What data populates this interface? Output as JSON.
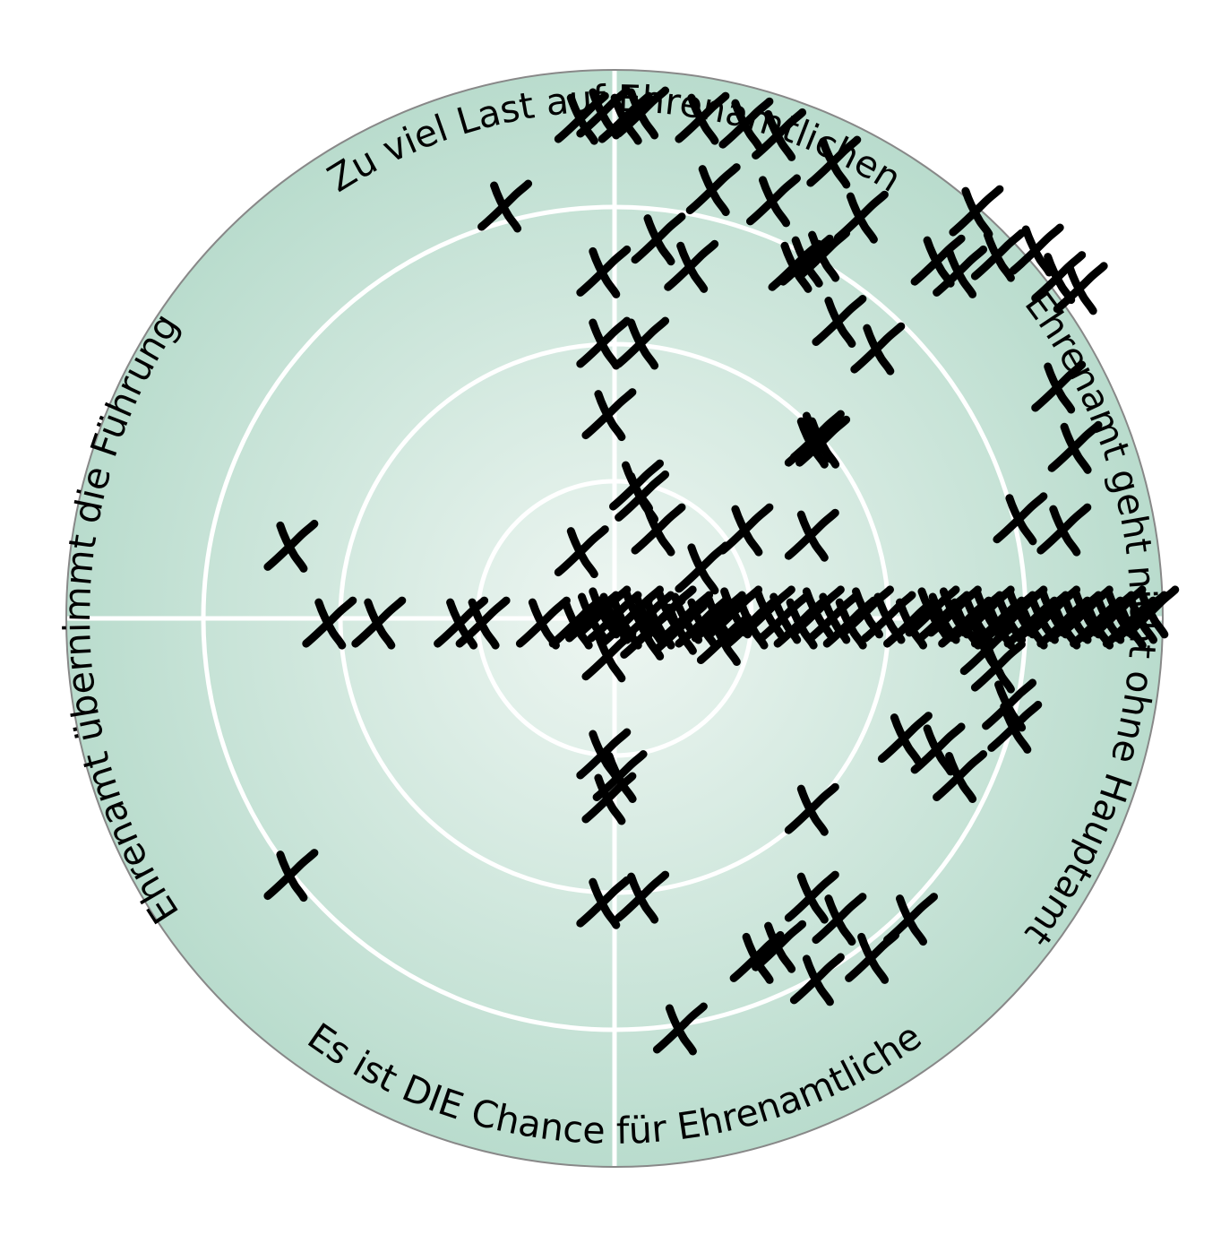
{
  "chart_data": {
    "type": "scatter",
    "shape": "polar-quadrant",
    "marker": "handwritten-x",
    "rings": 4,
    "grid": true,
    "axis_labels": {
      "top": "Zu viel Last auf Ehrenamtlichen",
      "right": "Ehrenamt geht nicht ohne Hauptamt",
      "bottom": "Es ist DIE Chance für Ehrenamtliche",
      "left": "Ehrenamt übernimmt die Führung"
    },
    "colors": {
      "center": "#eef6f2",
      "edge": "#b9dccd",
      "grid": "#ffffff",
      "outline": "#888888",
      "marker": "#000000"
    },
    "points": [
      [
        -0.06,
        0.91
      ],
      [
        -0.02,
        0.92
      ],
      [
        0.02,
        0.91
      ],
      [
        0.05,
        0.92
      ],
      [
        0.16,
        0.91
      ],
      [
        0.24,
        0.9
      ],
      [
        0.3,
        0.88
      ],
      [
        0.4,
        0.83
      ],
      [
        -0.2,
        0.75
      ],
      [
        0.18,
        0.78
      ],
      [
        0.29,
        0.76
      ],
      [
        0.45,
        0.73
      ],
      [
        0.08,
        0.69
      ],
      [
        0.14,
        0.64
      ],
      [
        -0.02,
        0.63
      ],
      [
        0.33,
        0.64
      ],
      [
        0.35,
        0.65
      ],
      [
        0.38,
        0.66
      ],
      [
        0.66,
        0.74
      ],
      [
        0.59,
        0.65
      ],
      [
        0.63,
        0.63
      ],
      [
        0.7,
        0.66
      ],
      [
        0.77,
        0.67
      ],
      [
        0.81,
        0.62
      ],
      [
        0.85,
        0.6
      ],
      [
        -0.02,
        0.5
      ],
      [
        0.05,
        0.5
      ],
      [
        0.41,
        0.54
      ],
      [
        0.48,
        0.49
      ],
      [
        0.81,
        0.42
      ],
      [
        -0.01,
        0.37
      ],
      [
        0.36,
        0.32
      ],
      [
        0.37,
        0.33
      ],
      [
        0.38,
        0.32
      ],
      [
        0.84,
        0.31
      ],
      [
        0.04,
        0.24
      ],
      [
        0.05,
        0.22
      ],
      [
        0.08,
        0.16
      ],
      [
        -0.06,
        0.12
      ],
      [
        0.24,
        0.16
      ],
      [
        0.36,
        0.15
      ],
      [
        0.82,
        0.16
      ],
      [
        0.74,
        0.18
      ],
      [
        0.16,
        0.09
      ],
      [
        -0.59,
        0.13
      ],
      [
        -0.52,
        -0.01
      ],
      [
        -0.43,
        -0.01
      ],
      [
        -0.28,
        -0.01
      ],
      [
        -0.24,
        -0.01
      ],
      [
        -0.13,
        -0.01
      ],
      [
        -0.07,
        -0.01
      ],
      [
        -0.04,
        0
      ],
      [
        -0.02,
        0.01
      ],
      [
        0,
        0
      ],
      [
        0.02,
        -0.01
      ],
      [
        0.04,
        0.01
      ],
      [
        0.06,
        0
      ],
      [
        0.08,
        -0.01
      ],
      [
        0.1,
        0.01
      ],
      [
        0.13,
        0
      ],
      [
        0.16,
        -0.01
      ],
      [
        0.19,
        0
      ],
      [
        0.22,
        0.01
      ],
      [
        0.25,
        -0.01
      ],
      [
        0.28,
        0.01
      ],
      [
        0.31,
        0
      ],
      [
        0.34,
        -0.01
      ],
      [
        0.37,
        0.01
      ],
      [
        0.4,
        0
      ],
      [
        0.43,
        -0.01
      ],
      [
        0.46,
        0.01
      ],
      [
        0.5,
        0
      ],
      [
        0.54,
        -0.01
      ],
      [
        0.58,
        0.01
      ],
      [
        0.6,
        0
      ],
      [
        0.62,
        0.01
      ],
      [
        0.64,
        -0.01
      ],
      [
        0.66,
        0
      ],
      [
        0.68,
        0.01
      ],
      [
        0.7,
        -0.01
      ],
      [
        0.72,
        0
      ],
      [
        0.74,
        0.01
      ],
      [
        0.76,
        -0.01
      ],
      [
        0.78,
        0
      ],
      [
        0.8,
        0.01
      ],
      [
        0.82,
        -0.01
      ],
      [
        0.84,
        0
      ],
      [
        0.86,
        0.01
      ],
      [
        0.88,
        -0.01
      ],
      [
        0.9,
        0
      ],
      [
        0.92,
        0.01
      ],
      [
        0.94,
        -0.01
      ],
      [
        0.96,
        0
      ],
      [
        0.98,
        0.01
      ],
      [
        -0.01,
        -0.07
      ],
      [
        0.06,
        -0.03
      ],
      [
        0.12,
        -0.02
      ],
      [
        0.2,
        -0.04
      ],
      [
        0.68,
        -0.06
      ],
      [
        0.7,
        -0.09
      ],
      [
        0.72,
        -0.16
      ],
      [
        0.73,
        -0.2
      ],
      [
        0.53,
        -0.22
      ],
      [
        0.59,
        -0.24
      ],
      [
        0.63,
        -0.29
      ],
      [
        -0.02,
        -0.25
      ],
      [
        0.01,
        -0.29
      ],
      [
        -0.01,
        -0.33
      ],
      [
        0.36,
        -0.35
      ],
      [
        -0.59,
        -0.47
      ],
      [
        -0.02,
        -0.52
      ],
      [
        0.05,
        -0.51
      ],
      [
        0.36,
        -0.51
      ],
      [
        0.41,
        -0.55
      ],
      [
        0.54,
        -0.55
      ],
      [
        0.47,
        -0.62
      ],
      [
        0.26,
        -0.62
      ],
      [
        0.3,
        -0.6
      ],
      [
        0.37,
        -0.66
      ],
      [
        0.12,
        -0.75
      ]
    ]
  }
}
